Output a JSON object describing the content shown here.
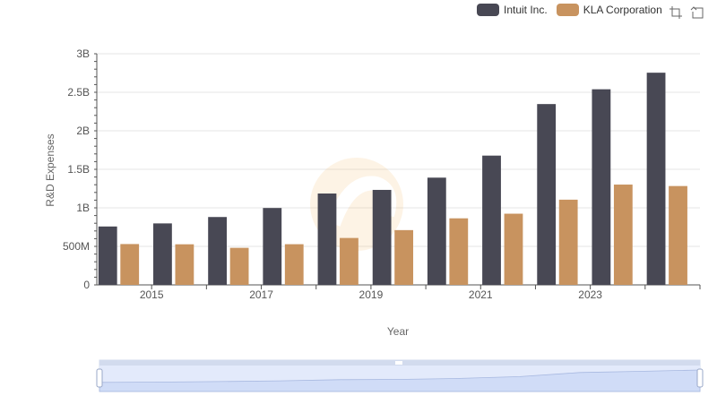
{
  "legend": {
    "items": [
      {
        "label": "Intuit Inc.",
        "color": "#484854"
      },
      {
        "label": "KLA Corporation",
        "color": "#c8935f"
      }
    ]
  },
  "toolbox": {
    "icons": [
      "zoom-icon",
      "restore-icon"
    ]
  },
  "chart_data": {
    "type": "bar",
    "categories": [
      "2014",
      "2015",
      "2016",
      "2017",
      "2018",
      "2019",
      "2020",
      "2021",
      "2022",
      "2023",
      "2024"
    ],
    "x_tick_labels": [
      "2015",
      "2017",
      "2019",
      "2021",
      "2023"
    ],
    "series": [
      {
        "name": "Intuit Inc.",
        "color": "#484854",
        "values": [
          758000000,
          798000000,
          881000000,
          998000000,
          1186000000,
          1233000000,
          1392000000,
          1678000000,
          2347000000,
          2539000000,
          2754000000
        ]
      },
      {
        "name": "KLA Corporation",
        "color": "#c8935f",
        "values": [
          530000000,
          527000000,
          481000000,
          528000000,
          609000000,
          711000000,
          864000000,
          924000000,
          1106000000,
          1302000000,
          1283000000
        ]
      }
    ],
    "xlabel": "Year",
    "ylabel": "R&D Expenses",
    "ylim": [
      0,
      3000000000
    ],
    "y_ticks": [
      0,
      500000000,
      1000000000,
      1500000000,
      2000000000,
      2500000000,
      3000000000
    ],
    "y_tick_labels": [
      "0",
      "500M",
      "1B",
      "1.5B",
      "2B",
      "2.5B",
      "3B"
    ],
    "grid": true,
    "legend_position": "top-right",
    "datazoom_slider": true
  }
}
